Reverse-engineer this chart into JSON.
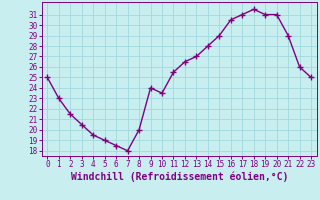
{
  "x": [
    0,
    1,
    2,
    3,
    4,
    5,
    6,
    7,
    8,
    9,
    10,
    11,
    12,
    13,
    14,
    15,
    16,
    17,
    18,
    19,
    20,
    21,
    22,
    23
  ],
  "y": [
    25,
    23,
    21.5,
    20.5,
    19.5,
    19,
    18.5,
    18,
    20,
    24,
    23.5,
    25.5,
    26.5,
    27,
    28,
    29,
    30.5,
    31,
    31.5,
    31,
    31,
    29,
    26,
    25
  ],
  "line_color": "#800080",
  "marker": "+",
  "marker_size": 4,
  "background_color": "#c8eef0",
  "grid_color": "#a0d8dc",
  "xlabel": "Windchill (Refroidissement éolien,°C)",
  "ylim": [
    17.5,
    32.2
  ],
  "xlim": [
    -0.5,
    23.5
  ],
  "yticks": [
    18,
    19,
    20,
    21,
    22,
    23,
    24,
    25,
    26,
    27,
    28,
    29,
    30,
    31
  ],
  "xticks": [
    0,
    1,
    2,
    3,
    4,
    5,
    6,
    7,
    8,
    9,
    10,
    11,
    12,
    13,
    14,
    15,
    16,
    17,
    18,
    19,
    20,
    21,
    22,
    23
  ],
  "tick_color": "#800080",
  "tick_fontsize": 5.5,
  "xlabel_fontsize": 7,
  "spine_color": "#800080",
  "line_width": 1.0
}
